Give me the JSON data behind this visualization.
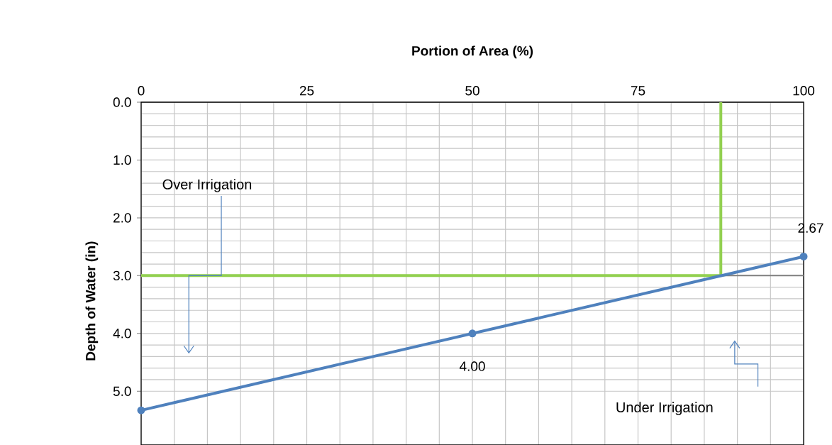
{
  "chart_data": {
    "type": "line",
    "xlabel": "Portion of Area (%)",
    "ylabel": "Depth of Water (in)",
    "xlim": [
      0,
      100
    ],
    "xticks": [
      0,
      25,
      50,
      75,
      100
    ],
    "ylim": [
      5.93,
      0
    ],
    "yticks": [
      {
        "value": 0,
        "label": "0.0"
      },
      {
        "value": 1,
        "label": "1.0"
      },
      {
        "value": 2,
        "label": "2.0"
      },
      {
        "value": 3,
        "label": "3.0"
      },
      {
        "value": 4,
        "label": "4.0"
      },
      {
        "value": 5,
        "label": "5.0"
      }
    ],
    "grid": true,
    "ref_lines": [
      {
        "axis": "y",
        "value": 3,
        "color": "#7f7f7f"
      }
    ],
    "series": [
      {
        "color": "#4f81bd",
        "x": [
          0,
          50,
          100
        ],
        "values": [
          5.33,
          4.0,
          2.67
        ],
        "marker": "circle",
        "value_labels": [
          null,
          "4.00",
          "2.67"
        ]
      },
      {
        "color": "#92d050",
        "x": [
          0,
          87.5,
          87.5
        ],
        "values": [
          3,
          3,
          0
        ],
        "marker": "none"
      }
    ],
    "annotations": [
      "Over Irrigation",
      "Under Irrigation"
    ]
  }
}
